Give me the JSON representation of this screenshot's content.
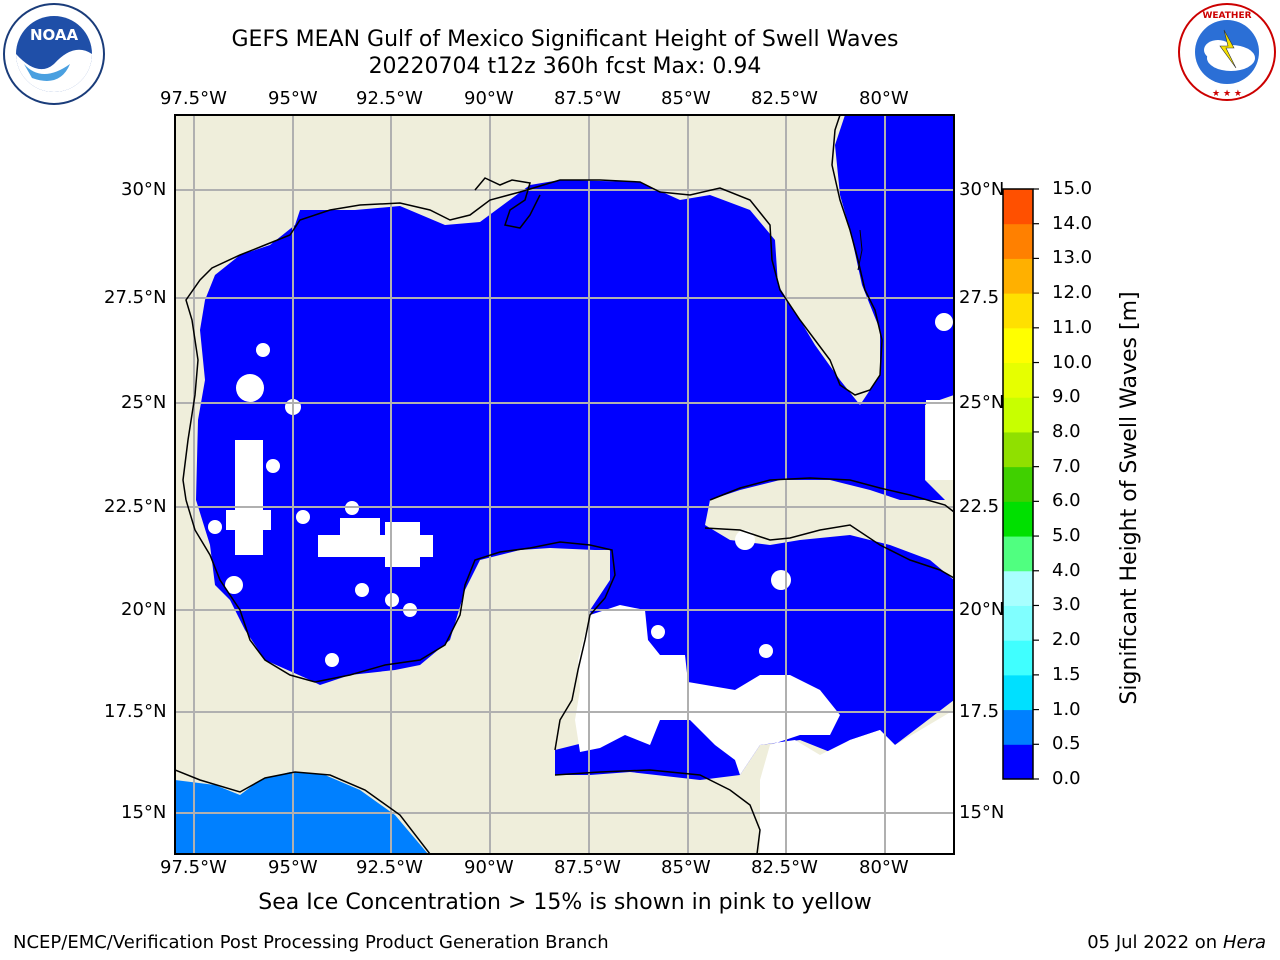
{
  "header": {
    "title_line1": "GEFS MEAN Gulf of Mexico Significant Height of Swell Waves",
    "title_line2": "20220704 t12z 360h fcst   Max: 0.94"
  },
  "logos": {
    "left": "NOAA",
    "right": "NATIONAL WEATHER SERVICE"
  },
  "map": {
    "lon_ticks_top": [
      "97.5°W",
      "95°W",
      "92.5°W",
      "90°W",
      "87.5°W",
      "85°W",
      "82.5°W",
      "80°W"
    ],
    "lon_ticks_bottom": [
      "97.5°W",
      "95°W",
      "92.5°W",
      "90°W",
      "87.5°W",
      "85°W",
      "82.5°W",
      "80°W"
    ],
    "lat_ticks_left": [
      "30°N",
      "27.5°N",
      "25°N",
      "22.5°N",
      "20°N",
      "17.5°N",
      "15°N"
    ],
    "lat_ticks_right": [
      "30°N",
      "27.5",
      "25°N",
      "22.5",
      "20°N",
      "17.5",
      "15°N"
    ],
    "colors": {
      "land": "#efeedb",
      "ocean_0_05": "#0000ff",
      "ocean_05_10": "#0080ff",
      "grid": "#b0b0b0"
    }
  },
  "colorbar": {
    "label": "Significant Height of Swell Waves [m]",
    "ticks": [
      "15.0",
      "14.0",
      "13.0",
      "12.0",
      "11.0",
      "10.0",
      "9.0",
      "8.0",
      "7.0",
      "6.0",
      "5.0",
      "4.0",
      "3.0",
      "2.0",
      "1.5",
      "1.0",
      "0.5",
      "0.0"
    ],
    "colors": [
      "#0000ff",
      "#0080ff",
      "#00e0ff",
      "#40ffff",
      "#80ffff",
      "#a8ffff",
      "#50ff80",
      "#00e000",
      "#40d000",
      "#90e000",
      "#c8ff00",
      "#e6ff00",
      "#ffff00",
      "#ffe000",
      "#ffb000",
      "#ff8000",
      "#ff5000",
      "#ff2000",
      "#ff0000"
    ]
  },
  "note": "Sea Ice Concentration > 15% is shown in pink to yellow",
  "footer": {
    "left": "NCEP/EMC/Verification Post Processing Product Generation Branch",
    "right_date": "05 Jul 2022 on",
    "right_host": "Hera"
  }
}
